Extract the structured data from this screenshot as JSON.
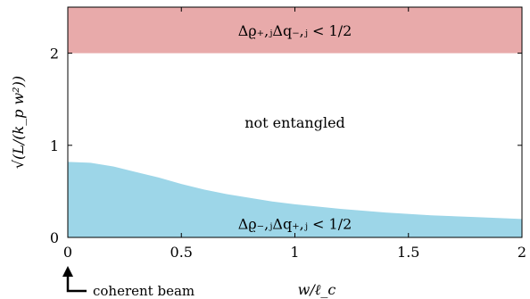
{
  "chart_data": {
    "type": "area",
    "xlabel": "w/ℓ_c",
    "ylabel": "√(L/(k_p w²))",
    "xlim": [
      0,
      2
    ],
    "ylim": [
      0,
      2.5
    ],
    "x_ticks": [
      "0",
      "0.5",
      "1",
      "1.5",
      "2"
    ],
    "y_ticks": [
      "0",
      "1",
      "2"
    ],
    "grid": false,
    "regions": [
      {
        "label": "Δϱ₊,ⱼΔq₋,ⱼ < 1/2",
        "color": "#e8aaaa",
        "y_from": 2.0,
        "y_to": 2.5
      },
      {
        "label": "not entangled",
        "color": "#ffffff"
      },
      {
        "label": "Δϱ₋,ⱼΔq₊,ⱼ < 1/2",
        "color": "#9dd6e8",
        "boundary_x": [
          0,
          0.1,
          0.2,
          0.3,
          0.4,
          0.5,
          0.6,
          0.7,
          0.8,
          0.9,
          1.0,
          1.2,
          1.4,
          1.6,
          1.8,
          2.0
        ],
        "boundary_y": [
          0.82,
          0.81,
          0.77,
          0.71,
          0.65,
          0.58,
          0.52,
          0.47,
          0.43,
          0.39,
          0.36,
          0.31,
          0.27,
          0.24,
          0.22,
          0.2
        ]
      }
    ],
    "annotations": [
      {
        "text": "coherent beam",
        "x": 0
      }
    ]
  }
}
